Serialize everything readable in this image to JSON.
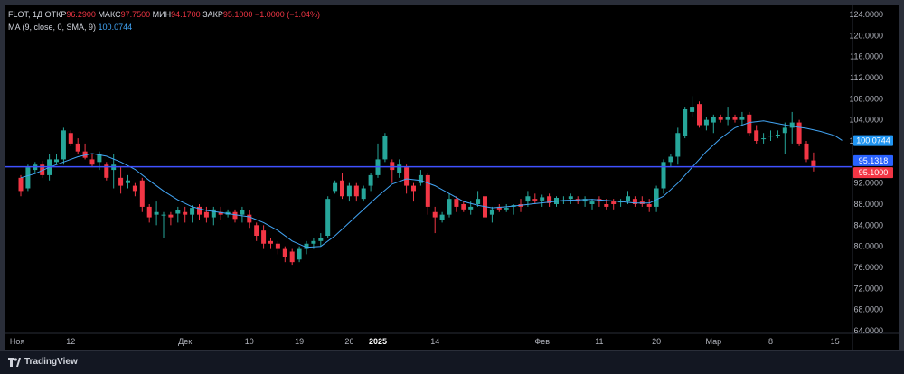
{
  "legend": {
    "symbol": "FLOT, 1Д",
    "open_label": "ОТКР",
    "open_value": "96.2900",
    "high_label": "МАКС",
    "high_value": "97.7500",
    "low_label": "МИН",
    "low_value": "94.1700",
    "close_label": "ЗАКР",
    "close_value": "95.1000",
    "change": "−1.0000 (−1.04%)",
    "ma_label": "MA (9, close, 0, SMA, 9)",
    "ma_value": "100.0744"
  },
  "footer": {
    "brand": "TradingView"
  },
  "colors": {
    "up": "#26a69a",
    "down": "#f23645",
    "ma": "#42a5f5",
    "hline": "#3f51ff"
  },
  "chart_data": {
    "type": "candlestick",
    "y_axis": {
      "min": 64,
      "max": 124,
      "ticks": [
        "124.0000",
        "120.0000",
        "116.0000",
        "112.0000",
        "108.0000",
        "104.0000",
        "100.0000",
        "96.0000",
        "92.0000",
        "88.0000",
        "84.0000",
        "80.0000",
        "76.0000",
        "72.0000",
        "68.0000",
        "64.0000"
      ]
    },
    "x_axis": {
      "ticks": [
        {
          "i": -0.5,
          "label": "Ноя",
          "bold": false
        },
        {
          "i": 7,
          "label": "12",
          "bold": false
        },
        {
          "i": 23,
          "label": "Дек",
          "bold": false
        },
        {
          "i": 32,
          "label": "10",
          "bold": false
        },
        {
          "i": 39,
          "label": "19",
          "bold": false
        },
        {
          "i": 46,
          "label": "26",
          "bold": false
        },
        {
          "i": 50,
          "label": "2025",
          "bold": true
        },
        {
          "i": 58,
          "label": "14",
          "bold": false
        },
        {
          "i": 73,
          "label": "Фев",
          "bold": false
        },
        {
          "i": 81,
          "label": "11",
          "bold": false
        },
        {
          "i": 89,
          "label": "20",
          "bold": false
        },
        {
          "i": 97,
          "label": "Мар",
          "bold": false
        },
        {
          "i": 105,
          "label": "8",
          "bold": false
        },
        {
          "i": 114,
          "label": "15",
          "bold": false
        }
      ]
    },
    "price_labels": [
      {
        "value": 100.0744,
        "text": "100.0744",
        "color": "#2196f3"
      },
      {
        "value": 95.1318,
        "text": "95.1318",
        "color": "#2962ff"
      },
      {
        "value": 95.1,
        "text": "95.1000",
        "color": "#f23645"
      }
    ],
    "horizontal_line": 95.1,
    "ohlc": [
      [
        93.0,
        93.5,
        89.5,
        90.5
      ],
      [
        91.0,
        95.5,
        90.5,
        95.0
      ],
      [
        94.5,
        96.0,
        94.0,
        95.5
      ],
      [
        95.5,
        96.2,
        93.0,
        93.5
      ],
      [
        93.5,
        97.5,
        92.5,
        96.5
      ],
      [
        96.0,
        97.5,
        95.5,
        96.5
      ],
      [
        96.5,
        102.5,
        95.5,
        102.0
      ],
      [
        101.5,
        102.0,
        99.0,
        99.5
      ],
      [
        99.5,
        100.5,
        97.5,
        98.0
      ],
      [
        98.0,
        99.5,
        96.5,
        96.8
      ],
      [
        96.5,
        97.5,
        95.0,
        95.5
      ],
      [
        96.0,
        98.0,
        94.5,
        97.5
      ],
      [
        95.5,
        96.0,
        92.5,
        93.0
      ],
      [
        94.5,
        97.5,
        91.0,
        95.5
      ],
      [
        93.0,
        95.0,
        90.0,
        91.5
      ],
      [
        92.0,
        93.5,
        91.0,
        92.5
      ],
      [
        91.5,
        92.0,
        89.5,
        90.5
      ],
      [
        92.5,
        93.0,
        86.5,
        87.5
      ],
      [
        87.5,
        88.0,
        84.5,
        85.5
      ],
      [
        86.0,
        88.5,
        84.0,
        86.5
      ],
      [
        86.0,
        86.5,
        81.5,
        86.0
      ],
      [
        86.0,
        86.5,
        84.0,
        85.5
      ],
      [
        86.2,
        87.5,
        84.5,
        86.8
      ],
      [
        86.5,
        87.5,
        84.5,
        86.0
      ],
      [
        86.0,
        87.8,
        84.5,
        87.3
      ],
      [
        87.5,
        88.0,
        85.0,
        86.0
      ],
      [
        86.5,
        87.5,
        84.5,
        85.5
      ],
      [
        85.5,
        87.5,
        84.0,
        87.0
      ],
      [
        86.5,
        87.5,
        85.0,
        86.0
      ],
      [
        86.0,
        87.0,
        85.5,
        86.5
      ],
      [
        86.5,
        87.0,
        84.5,
        85.2
      ],
      [
        86.0,
        87.5,
        84.5,
        86.8
      ],
      [
        86.0,
        86.8,
        83.5,
        84.5
      ],
      [
        84.0,
        84.5,
        81.0,
        82.0
      ],
      [
        83.0,
        84.0,
        79.5,
        80.5
      ],
      [
        81.0,
        81.5,
        79.5,
        80.5
      ],
      [
        80.5,
        81.0,
        78.5,
        79.5
      ],
      [
        79.5,
        80.0,
        77.0,
        78.0
      ],
      [
        79.0,
        79.5,
        76.5,
        77.0
      ],
      [
        77.5,
        80.0,
        77.0,
        79.5
      ],
      [
        79.5,
        81.0,
        78.5,
        80.5
      ],
      [
        80.5,
        81.5,
        79.5,
        81.0
      ],
      [
        81.0,
        82.5,
        80.0,
        81.5
      ],
      [
        82.0,
        89.5,
        81.5,
        89.0
      ],
      [
        90.5,
        92.5,
        90.0,
        92.0
      ],
      [
        92.5,
        94.0,
        89.0,
        89.5
      ],
      [
        89.5,
        92.0,
        88.5,
        91.5
      ],
      [
        91.5,
        92.0,
        88.5,
        89.5
      ],
      [
        89.0,
        91.5,
        88.5,
        91.0
      ],
      [
        91.5,
        94.0,
        90.5,
        93.5
      ],
      [
        93.5,
        99.5,
        93.0,
        96.5
      ],
      [
        96.5,
        101.5,
        96.0,
        101.0
      ],
      [
        96.0,
        96.5,
        92.0,
        94.5
      ],
      [
        94.0,
        96.5,
        93.0,
        95.5
      ],
      [
        95.0,
        95.5,
        90.0,
        91.5
      ],
      [
        91.5,
        92.0,
        88.5,
        90.5
      ],
      [
        92.0,
        94.5,
        91.5,
        93.5
      ],
      [
        93.5,
        94.0,
        86.0,
        87.5
      ],
      [
        86.5,
        87.5,
        82.5,
        85.5
      ],
      [
        85.0,
        86.5,
        84.5,
        86.0
      ],
      [
        86.0,
        90.0,
        85.5,
        89.0
      ],
      [
        89.0,
        89.5,
        86.5,
        87.5
      ],
      [
        88.0,
        88.5,
        86.5,
        87.0
      ],
      [
        87.0,
        88.5,
        86.0,
        87.5
      ],
      [
        88.0,
        90.5,
        87.5,
        89.0
      ],
      [
        89.5,
        90.0,
        85.0,
        85.5
      ],
      [
        86.0,
        87.5,
        84.5,
        87.0
      ],
      [
        87.5,
        88.0,
        86.5,
        87.0
      ],
      [
        87.0,
        88.0,
        86.5,
        87.3
      ],
      [
        87.5,
        88.0,
        86.0,
        87.8
      ],
      [
        88.0,
        89.0,
        86.5,
        87.5
      ],
      [
        88.5,
        90.5,
        87.5,
        89.5
      ],
      [
        89.0,
        90.0,
        88.0,
        88.7
      ],
      [
        88.7,
        89.8,
        87.5,
        89.3
      ],
      [
        89.5,
        90.0,
        87.5,
        88.2
      ],
      [
        88.0,
        89.5,
        87.5,
        89.2
      ],
      [
        88.5,
        89.5,
        88.0,
        88.7
      ],
      [
        89.0,
        90.0,
        88.0,
        89.5
      ],
      [
        89.0,
        89.5,
        88.0,
        88.5
      ],
      [
        88.5,
        89.5,
        87.5,
        89.0
      ],
      [
        88.0,
        89.0,
        87.0,
        88.5
      ],
      [
        89.0,
        89.5,
        87.5,
        88.5
      ],
      [
        88.0,
        89.0,
        87.0,
        87.5
      ],
      [
        88.5,
        89.0,
        87.0,
        88.0
      ],
      [
        88.5,
        89.0,
        87.5,
        88.5
      ],
      [
        88.5,
        90.5,
        88.0,
        89.5
      ],
      [
        89.0,
        89.5,
        87.5,
        88.0
      ],
      [
        88.5,
        89.5,
        87.5,
        88.0
      ],
      [
        88.0,
        89.0,
        86.5,
        87.5
      ],
      [
        87.5,
        91.5,
        86.5,
        91.0
      ],
      [
        91.0,
        96.5,
        90.0,
        96.0
      ],
      [
        96.0,
        97.5,
        95.0,
        97.0
      ],
      [
        97.0,
        102.5,
        95.5,
        101.5
      ],
      [
        101.0,
        106.5,
        100.5,
        106.0
      ],
      [
        105.5,
        108.5,
        104.5,
        106.5
      ],
      [
        107.0,
        107.5,
        102.5,
        103.0
      ],
      [
        103.0,
        104.5,
        102.0,
        104.0
      ],
      [
        103.5,
        105.0,
        101.5,
        104.5
      ],
      [
        104.5,
        105.0,
        103.5,
        104.0
      ],
      [
        104.0,
        106.5,
        103.0,
        104.5
      ],
      [
        104.5,
        105.0,
        103.5,
        104.0
      ],
      [
        104.0,
        105.5,
        103.0,
        104.5
      ],
      [
        105.0,
        105.5,
        101.0,
        101.5
      ],
      [
        102.0,
        103.0,
        99.5,
        100.0
      ],
      [
        100.5,
        101.5,
        99.5,
        100.5
      ],
      [
        101.0,
        102.0,
        100.0,
        101.0
      ],
      [
        101.0,
        102.0,
        100.5,
        101.2
      ],
      [
        101.5,
        103.5,
        97.5,
        102.5
      ],
      [
        102.5,
        105.5,
        99.5,
        103.5
      ],
      [
        103.5,
        104.0,
        99.0,
        99.5
      ],
      [
        99.5,
        100.0,
        96.0,
        96.5
      ],
      [
        96.3,
        97.8,
        94.2,
        95.1
      ]
    ],
    "ma": [
      [
        0,
        93.0
      ],
      [
        2,
        93.8
      ],
      [
        4,
        95.0
      ],
      [
        6,
        96.0
      ],
      [
        8,
        97.0
      ],
      [
        10,
        97.6
      ],
      [
        12,
        97.1
      ],
      [
        14,
        96.0
      ],
      [
        16,
        94.6
      ],
      [
        18,
        92.5
      ],
      [
        20,
        90.5
      ],
      [
        22,
        88.8
      ],
      [
        24,
        87.5
      ],
      [
        26,
        86.8
      ],
      [
        28,
        86.4
      ],
      [
        30,
        86.0
      ],
      [
        32,
        85.6
      ],
      [
        34,
        84.5
      ],
      [
        36,
        83.0
      ],
      [
        38,
        81.0
      ],
      [
        40,
        79.8
      ],
      [
        42,
        80.0
      ],
      [
        44,
        82.0
      ],
      [
        46,
        84.5
      ],
      [
        48,
        87.0
      ],
      [
        50,
        89.5
      ],
      [
        52,
        91.8
      ],
      [
        54,
        92.8
      ],
      [
        56,
        92.5
      ],
      [
        58,
        91.5
      ],
      [
        60,
        90.0
      ],
      [
        62,
        88.5
      ],
      [
        64,
        87.8
      ],
      [
        66,
        87.3
      ],
      [
        68,
        87.5
      ],
      [
        70,
        87.8
      ],
      [
        72,
        88.1
      ],
      [
        74,
        88.4
      ],
      [
        76,
        88.7
      ],
      [
        78,
        88.8
      ],
      [
        80,
        88.9
      ],
      [
        82,
        88.7
      ],
      [
        84,
        88.5
      ],
      [
        86,
        88.2
      ],
      [
        88,
        88.2
      ],
      [
        90,
        89.5
      ],
      [
        92,
        92.0
      ],
      [
        94,
        95.0
      ],
      [
        96,
        98.0
      ],
      [
        98,
        100.5
      ],
      [
        100,
        102.5
      ],
      [
        102,
        103.5
      ],
      [
        104,
        103.8
      ],
      [
        106,
        103.3
      ],
      [
        108,
        102.8
      ],
      [
        110,
        102.4
      ],
      [
        112,
        101.8
      ],
      [
        114,
        101.0
      ],
      [
        115,
        100.1
      ]
    ]
  }
}
